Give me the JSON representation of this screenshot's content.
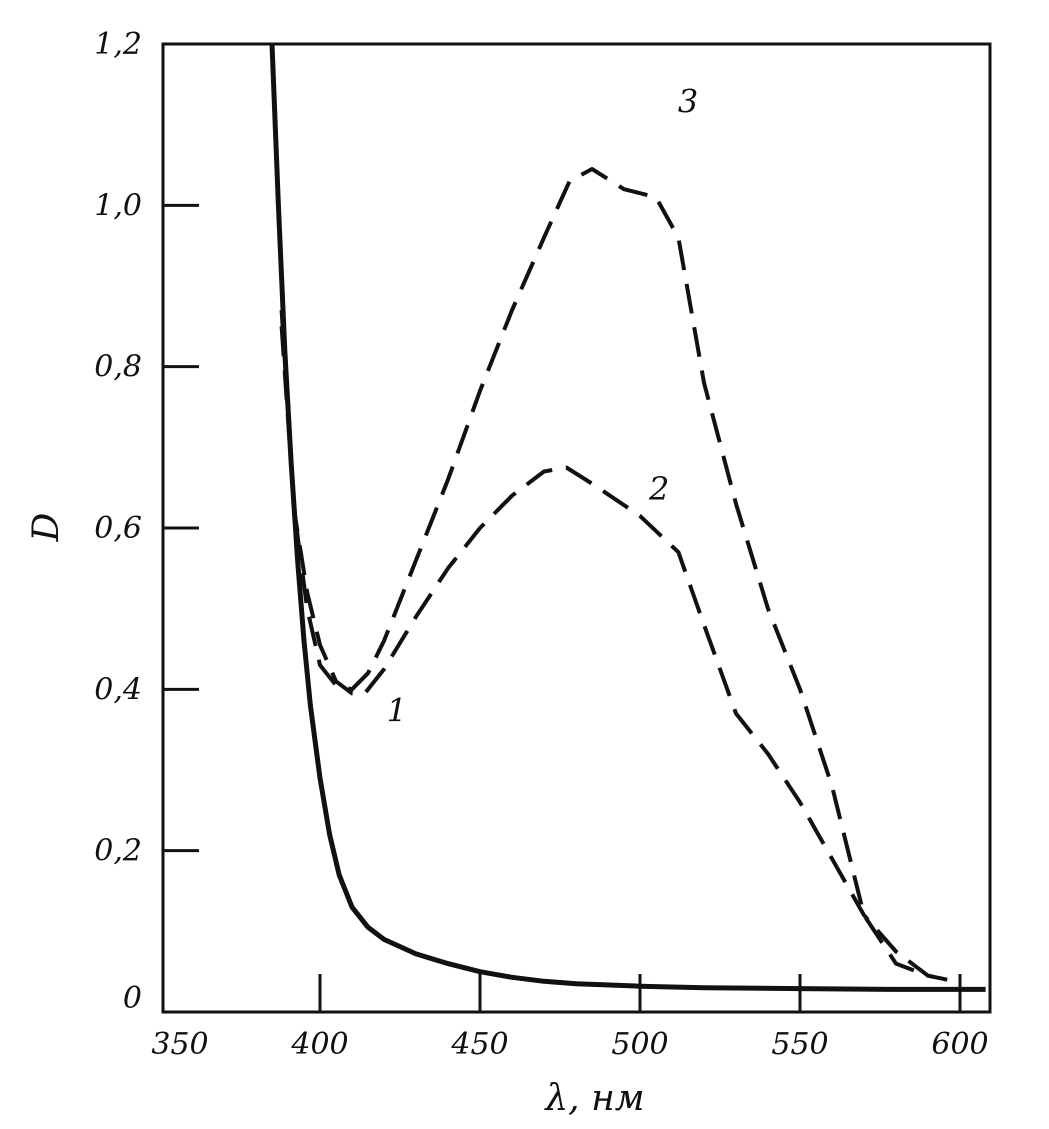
{
  "chart_data": {
    "type": "line",
    "title": "",
    "xlabel": "λ, нм",
    "ylabel": "D",
    "xlim": [
      350,
      610
    ],
    "ylim": [
      0,
      1.2
    ],
    "x_ticks": [
      {
        "value": 350,
        "label": "350"
      },
      {
        "value": 400,
        "label": "400"
      },
      {
        "value": 450,
        "label": "450"
      },
      {
        "value": 500,
        "label": "500"
      },
      {
        "value": 550,
        "label": "550"
      },
      {
        "value": 600,
        "label": "600"
      }
    ],
    "y_ticks": [
      {
        "value": 0,
        "label": "0"
      },
      {
        "value": 0.2,
        "label": "0,2"
      },
      {
        "value": 0.4,
        "label": "0,4"
      },
      {
        "value": 0.6,
        "label": "0,6"
      },
      {
        "value": 0.8,
        "label": "0,8"
      },
      {
        "value": 1.0,
        "label": "1,0"
      },
      {
        "value": 1.2,
        "label": "1,2"
      }
    ],
    "grid": false,
    "series": [
      {
        "label": "1",
        "style": "solid",
        "points": [
          [
            385,
            1.2
          ],
          [
            387,
            1.0
          ],
          [
            389,
            0.82
          ],
          [
            391,
            0.68
          ],
          [
            393,
            0.56
          ],
          [
            395,
            0.46
          ],
          [
            397,
            0.38
          ],
          [
            400,
            0.29
          ],
          [
            403,
            0.22
          ],
          [
            406,
            0.17
          ],
          [
            410,
            0.13
          ],
          [
            415,
            0.105
          ],
          [
            420,
            0.09
          ],
          [
            430,
            0.072
          ],
          [
            440,
            0.06
          ],
          [
            450,
            0.05
          ],
          [
            460,
            0.043
          ],
          [
            470,
            0.038
          ],
          [
            480,
            0.035
          ],
          [
            500,
            0.032
          ],
          [
            520,
            0.03
          ],
          [
            550,
            0.029
          ],
          [
            580,
            0.028
          ],
          [
            600,
            0.028
          ],
          [
            608,
            0.028
          ]
        ]
      },
      {
        "label": "2",
        "style": "dashed",
        "points": [
          [
            388,
            0.85
          ],
          [
            392,
            0.62
          ],
          [
            396,
            0.52
          ],
          [
            400,
            0.455
          ],
          [
            405,
            0.41
          ],
          [
            410,
            0.395
          ],
          [
            414,
            0.395
          ],
          [
            420,
            0.425
          ],
          [
            430,
            0.49
          ],
          [
            440,
            0.55
          ],
          [
            450,
            0.6
          ],
          [
            460,
            0.64
          ],
          [
            470,
            0.67
          ],
          [
            477,
            0.675
          ],
          [
            485,
            0.655
          ],
          [
            500,
            0.615
          ],
          [
            512,
            0.57
          ],
          [
            520,
            0.48
          ],
          [
            530,
            0.37
          ],
          [
            540,
            0.32
          ],
          [
            550,
            0.26
          ],
          [
            560,
            0.19
          ],
          [
            570,
            0.12
          ],
          [
            580,
            0.075
          ],
          [
            590,
            0.045
          ],
          [
            596,
            0.04
          ]
        ]
      },
      {
        "label": "3",
        "style": "dashed",
        "points": [
          [
            388,
            0.87
          ],
          [
            392,
            0.62
          ],
          [
            396,
            0.5
          ],
          [
            400,
            0.43
          ],
          [
            405,
            0.405
          ],
          [
            410,
            0.4
          ],
          [
            415,
            0.42
          ],
          [
            420,
            0.46
          ],
          [
            430,
            0.56
          ],
          [
            440,
            0.66
          ],
          [
            450,
            0.77
          ],
          [
            460,
            0.87
          ],
          [
            470,
            0.96
          ],
          [
            478,
            1.03
          ],
          [
            485,
            1.045
          ],
          [
            495,
            1.02
          ],
          [
            505,
            1.01
          ],
          [
            512,
            0.96
          ],
          [
            520,
            0.78
          ],
          [
            530,
            0.63
          ],
          [
            540,
            0.5
          ],
          [
            550,
            0.4
          ],
          [
            560,
            0.28
          ],
          [
            570,
            0.12
          ],
          [
            580,
            0.06
          ],
          [
            590,
            0.045
          ],
          [
            596,
            0.04
          ]
        ]
      }
    ]
  }
}
